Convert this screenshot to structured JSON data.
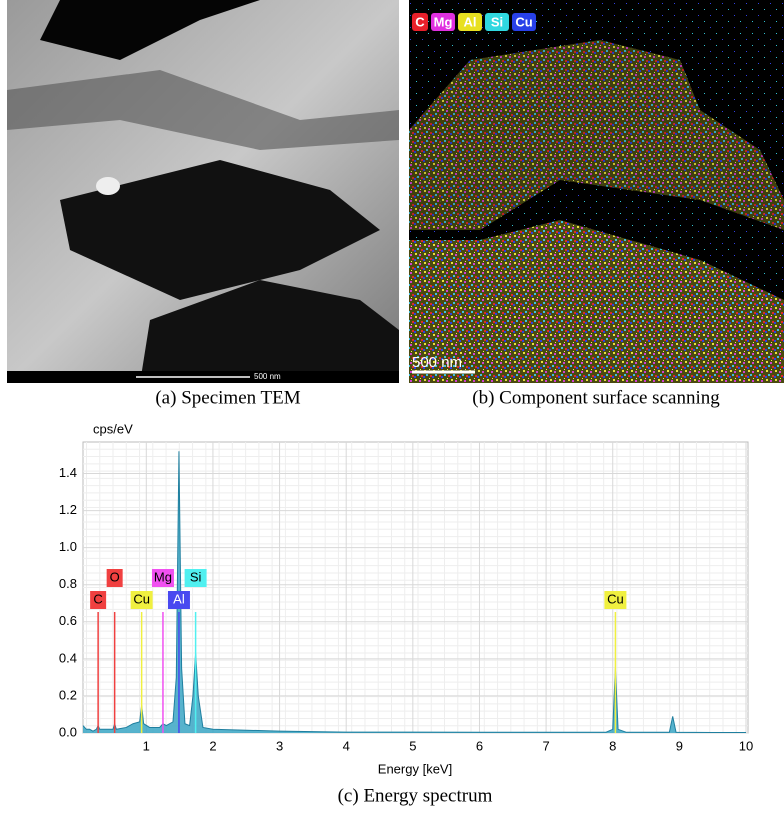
{
  "panels": {
    "a": {
      "caption": "(a) Specimen TEM",
      "scale_bar": "500 nm"
    },
    "b": {
      "caption": "(b) Component surface scanning",
      "scale_bar": "500 nm",
      "tags": [
        {
          "label": "C",
          "color": "#e8202a"
        },
        {
          "label": "Mg",
          "color": "#e030e0"
        },
        {
          "label": "Al",
          "color": "#e8e020"
        },
        {
          "label": "Si",
          "color": "#30d8e0"
        },
        {
          "label": "Cu",
          "color": "#2840e8"
        }
      ]
    }
  },
  "chart_data": {
    "type": "area",
    "caption": "(c) Energy spectrum",
    "y_label": "cps/eV",
    "x_label": "Energy [keV]",
    "x": [
      0.05,
      0.1,
      0.15,
      0.2,
      0.25,
      0.277,
      0.3,
      0.4,
      0.5,
      0.525,
      0.55,
      0.7,
      0.8,
      0.9,
      0.93,
      0.96,
      1.05,
      1.2,
      1.25,
      1.3,
      1.4,
      1.45,
      1.49,
      1.53,
      1.58,
      1.65,
      1.7,
      1.74,
      1.78,
      1.85,
      2.0,
      3.0,
      4.0,
      5.0,
      6.0,
      7.0,
      7.9,
      8.0,
      8.04,
      8.08,
      8.2,
      8.85,
      8.9,
      8.95,
      9.5,
      10.0
    ],
    "values": [
      0.04,
      0.02,
      0.02,
      0.01,
      0.02,
      0.04,
      0.02,
      0.02,
      0.02,
      0.05,
      0.02,
      0.03,
      0.05,
      0.06,
      0.15,
      0.05,
      0.03,
      0.03,
      0.05,
      0.04,
      0.06,
      0.3,
      1.52,
      0.35,
      0.05,
      0.04,
      0.2,
      0.43,
      0.2,
      0.03,
      0.02,
      0.01,
      0.005,
      0.005,
      0.004,
      0.004,
      0.004,
      0.02,
      0.35,
      0.02,
      0.004,
      0.004,
      0.09,
      0.004,
      0.003,
      0.003
    ],
    "color": "#3aa6c4",
    "xlim": [
      0.05,
      10
    ],
    "ylim": [
      0,
      1.57
    ],
    "xticks": [
      1,
      2,
      3,
      4,
      5,
      6,
      7,
      8,
      9,
      10
    ],
    "yticks": [
      {
        "value": 0,
        "label": "0.0"
      },
      0.2,
      0.4,
      0.6,
      0.8,
      {
        "value": 1,
        "label": "1.0"
      },
      1.2,
      1.4
    ],
    "grid": true,
    "annotations": [
      {
        "label": "C",
        "x": 0.277,
        "color": "#f04040"
      },
      {
        "label": "O",
        "x": 0.525,
        "color": "#f04040"
      },
      {
        "label": "Cu",
        "x": 0.93,
        "color": "#f0f040"
      },
      {
        "label": "Mg",
        "x": 1.25,
        "color": "#f050f0"
      },
      {
        "label": "Al",
        "x": 1.49,
        "color": "#4848f0"
      },
      {
        "label": "Si",
        "x": 1.74,
        "color": "#50f0f0"
      },
      {
        "label": "Cu",
        "x": 8.04,
        "color": "#f0f040"
      }
    ]
  }
}
